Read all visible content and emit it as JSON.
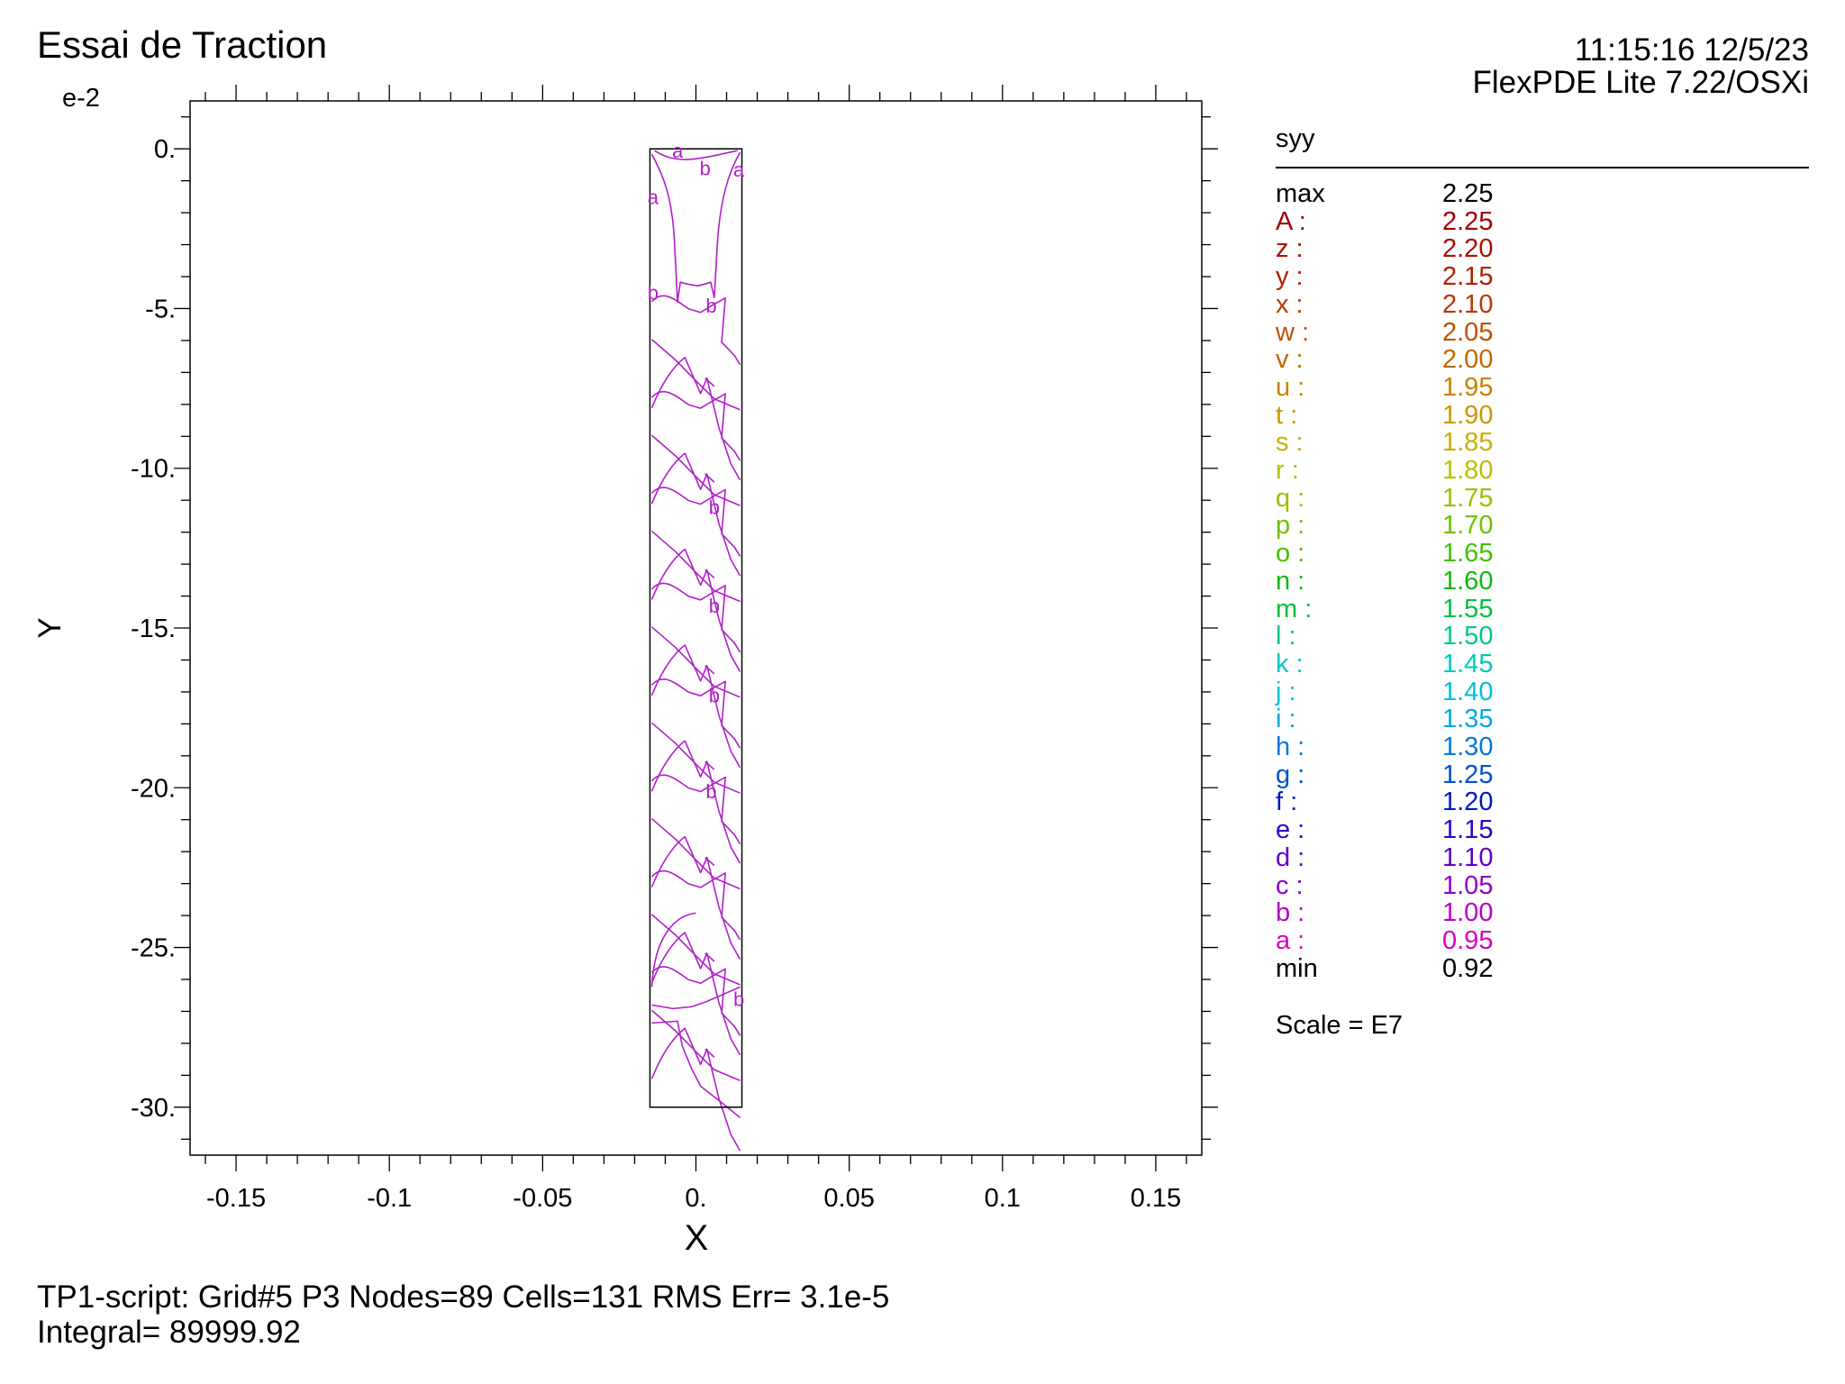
{
  "header": {
    "title": "Essai de Traction",
    "timestamp": "11:15:16 12/5/23",
    "software": "FlexPDE Lite 7.22/OSXi",
    "y_exponent": "e-2"
  },
  "footer": {
    "line1": "TP1-script:  Grid#5  P3  Nodes=89 Cells=131 RMS Err= 3.1e-5",
    "line2": "Integral=  89999.92"
  },
  "chart_data": {
    "type": "contour",
    "xlabel": "X",
    "ylabel": "Y",
    "xlim": [
      -0.165,
      0.165
    ],
    "ylim": [
      -31.5,
      1.5
    ],
    "x_ticks": [
      {
        "v": -0.15,
        "label": "-0.15"
      },
      {
        "v": -0.1,
        "label": "-0.1"
      },
      {
        "v": -0.05,
        "label": "-0.05"
      },
      {
        "v": 0,
        "label": "0."
      },
      {
        "v": 0.05,
        "label": "0.05"
      },
      {
        "v": 0.1,
        "label": "0.1"
      },
      {
        "v": 0.15,
        "label": "0.15"
      }
    ],
    "y_ticks": [
      {
        "v": 0,
        "label": "0."
      },
      {
        "v": -5,
        "label": "-5."
      },
      {
        "v": -10,
        "label": "-10."
      },
      {
        "v": -15,
        "label": "-15."
      },
      {
        "v": -20,
        "label": "-20."
      },
      {
        "v": -25,
        "label": "-25."
      },
      {
        "v": -30,
        "label": "-30."
      }
    ],
    "domain": {
      "x": [
        -0.015,
        0.015
      ],
      "y": [
        -30,
        0
      ]
    },
    "contour_color": "#b020c8",
    "contour_labels": [
      {
        "text": "a",
        "x": -0.006,
        "y": -0.05
      },
      {
        "text": "b",
        "x": 0.003,
        "y": -0.6
      },
      {
        "text": "a",
        "x": 0.014,
        "y": -0.65
      },
      {
        "text": "a",
        "x": -0.014,
        "y": -1.5
      },
      {
        "text": "b",
        "x": -0.014,
        "y": -4.5
      },
      {
        "text": "b",
        "x": 0.005,
        "y": -4.9
      },
      {
        "text": "b",
        "x": 0.006,
        "y": -11.2
      },
      {
        "text": "b",
        "x": 0.006,
        "y": -14.3
      },
      {
        "text": "b",
        "x": 0.006,
        "y": -17.1
      },
      {
        "text": "b",
        "x": 0.005,
        "y": -20.1
      },
      {
        "text": "b",
        "x": 0.014,
        "y": -26.6
      }
    ],
    "legend": {
      "variable": "syy",
      "max_label": "max",
      "max_value": "2.25",
      "min_label": "min",
      "min_value": "0.92",
      "scale": "Scale = E7",
      "levels": [
        {
          "label": "A :",
          "value": "2.25",
          "color": "#a00000"
        },
        {
          "label": "z :",
          "value": "2.20",
          "color": "#a81000"
        },
        {
          "label": "y :",
          "value": "2.15",
          "color": "#b02000"
        },
        {
          "label": "x :",
          "value": "2.10",
          "color": "#b83800"
        },
        {
          "label": "w :",
          "value": "2.05",
          "color": "#c05000"
        },
        {
          "label": "v :",
          "value": "2.00",
          "color": "#c06800"
        },
        {
          "label": "u :",
          "value": "1.95",
          "color": "#c88000"
        },
        {
          "label": "t :",
          "value": "1.90",
          "color": "#c89800"
        },
        {
          "label": "s :",
          "value": "1.85",
          "color": "#c8b000"
        },
        {
          "label": "r :",
          "value": "1.80",
          "color": "#b8c000"
        },
        {
          "label": "q :",
          "value": "1.75",
          "color": "#98c000"
        },
        {
          "label": "p :",
          "value": "1.70",
          "color": "#70c000"
        },
        {
          "label": "o :",
          "value": "1.65",
          "color": "#40c000"
        },
        {
          "label": "n :",
          "value": "1.60",
          "color": "#10b810"
        },
        {
          "label": "m :",
          "value": "1.55",
          "color": "#00c040"
        },
        {
          "label": "l :",
          "value": "1.50",
          "color": "#00c888"
        },
        {
          "label": "k :",
          "value": "1.45",
          "color": "#00c8c0"
        },
        {
          "label": "j :",
          "value": "1.40",
          "color": "#00c0d8"
        },
        {
          "label": "i :",
          "value": "1.35",
          "color": "#00a8e0"
        },
        {
          "label": "h :",
          "value": "1.30",
          "color": "#0078d8"
        },
        {
          "label": "g :",
          "value": "1.25",
          "color": "#0050d0"
        },
        {
          "label": "f :",
          "value": "1.20",
          "color": "#0018c8"
        },
        {
          "label": "e :",
          "value": "1.15",
          "color": "#3000c8"
        },
        {
          "label": "d :",
          "value": "1.10",
          "color": "#6000c8"
        },
        {
          "label": "c :",
          "value": "1.05",
          "color": "#9000c8"
        },
        {
          "label": "b :",
          "value": "1.00",
          "color": "#b800c8"
        },
        {
          "label": "a :",
          "value": "0.95",
          "color": "#d800c0"
        }
      ]
    }
  }
}
